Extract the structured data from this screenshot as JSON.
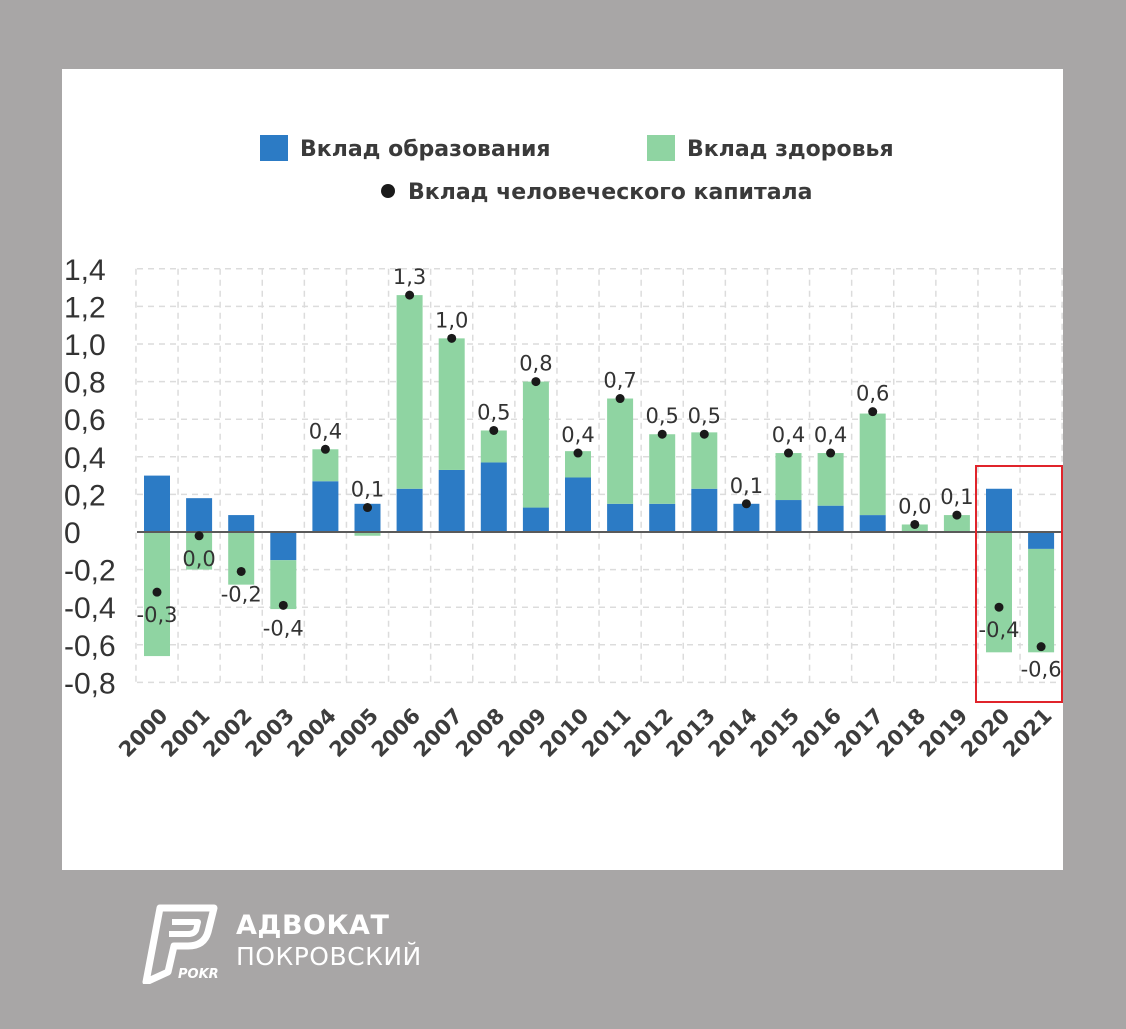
{
  "chart_data": {
    "type": "bar",
    "stacked": true,
    "categories": [
      "2000",
      "2001",
      "2002",
      "2003",
      "2004",
      "2005",
      "2006",
      "2007",
      "2008",
      "2009",
      "2010",
      "2011",
      "2012",
      "2013",
      "2014",
      "2015",
      "2016",
      "2017",
      "2018",
      "2019",
      "2020",
      "2021"
    ],
    "series": [
      {
        "name": "Вклад образования",
        "color": "#2c7bc5",
        "values": [
          0.3,
          0.18,
          0.09,
          -0.15,
          0.27,
          0.15,
          0.23,
          0.33,
          0.37,
          0.13,
          0.29,
          0.15,
          0.15,
          0.23,
          0.15,
          0.17,
          0.14,
          0.09,
          0.0,
          0.0,
          0.23,
          -0.09
        ]
      },
      {
        "name": "Вклад здоровья",
        "color": "#8fd4a2",
        "values": [
          -0.66,
          -0.2,
          -0.28,
          -0.26,
          0.17,
          -0.02,
          1.03,
          0.7,
          0.17,
          0.67,
          0.14,
          0.56,
          0.37,
          0.3,
          0.0,
          0.25,
          0.28,
          0.54,
          0.04,
          0.09,
          -0.64,
          -0.55
        ]
      }
    ],
    "dots": {
      "name": "Вклад человеческого капитала",
      "color": "#1a1a1a",
      "values": [
        -0.32,
        -0.02,
        -0.21,
        -0.39,
        0.44,
        0.13,
        1.26,
        1.03,
        0.54,
        0.8,
        0.42,
        0.71,
        0.52,
        0.52,
        0.15,
        0.42,
        0.42,
        0.64,
        0.04,
        0.09,
        -0.4,
        -0.61
      ],
      "labels": [
        "-0,3",
        "0,0",
        "-0,2",
        "-0,4",
        "0,4",
        "0,1",
        "1,3",
        "1,0",
        "0,5",
        "0,8",
        "0,4",
        "0,7",
        "0,5",
        "0,5",
        "0,1",
        "0,4",
        "0,4",
        "0,6",
        "0,0",
        "0,1",
        "-0,4",
        "-0,6"
      ]
    },
    "yticks": [
      1.4,
      1.2,
      1.0,
      0.8,
      0.6,
      0.4,
      0.2,
      0,
      -0.2,
      -0.4,
      -0.6,
      -0.8
    ],
    "ytick_labels": [
      "1,4",
      "1,2",
      "1,0",
      "0,8",
      "0,6",
      "0,4",
      "0,2",
      "0",
      "-0,2",
      "-0,4",
      "-0,6",
      "-0,8"
    ],
    "ylim": [
      -0.8,
      1.4
    ],
    "grid": true,
    "highlight": {
      "categories": [
        "2020",
        "2021"
      ],
      "color": "#e0242b"
    },
    "legend_position": "top-center"
  },
  "brand": {
    "line1": "АДВОКАТ",
    "line2": "ПОКРОВСКИЙ",
    "logo_text": "POKR"
  }
}
